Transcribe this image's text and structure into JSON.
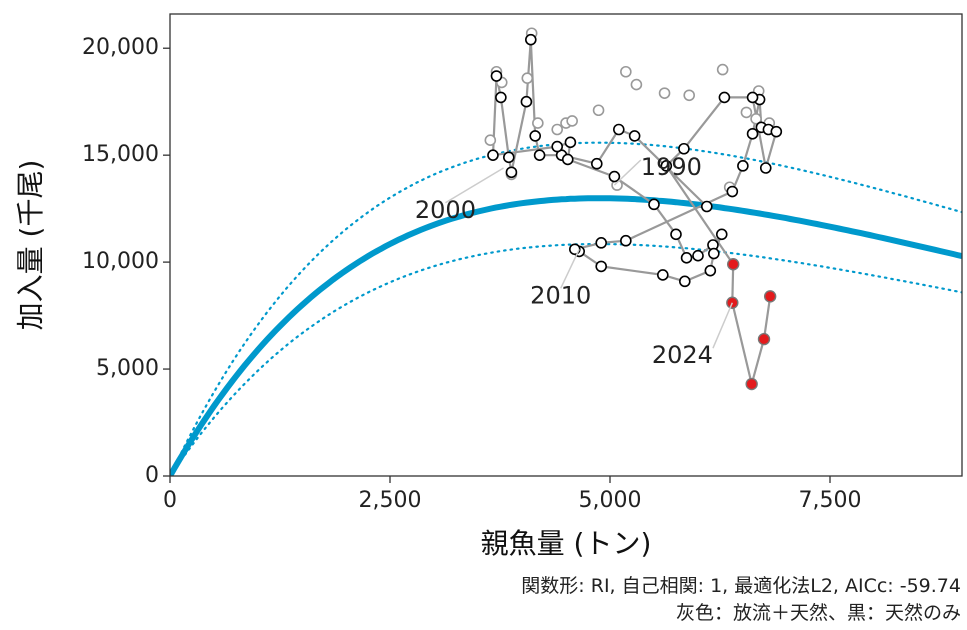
{
  "chart_data": {
    "type": "scatter",
    "xlabel": "親魚量 (トン)",
    "ylabel": "加入量 (千尾)",
    "xlim": [
      0,
      9000
    ],
    "ylim": [
      0,
      21600
    ],
    "xticks": [
      0,
      2500,
      5000,
      7500
    ],
    "xtick_labels": [
      "0",
      "2,500",
      "5,000",
      "7,500"
    ],
    "yticks": [
      0,
      5000,
      10000,
      15000,
      20000
    ],
    "ytick_labels": [
      "0",
      "5,000",
      "10,000",
      "15,000",
      "20,000"
    ],
    "grid": false,
    "colors": {
      "fit": "#0099cc",
      "path": "#999999",
      "natural_point_edge": "#000000",
      "total_point_edge": "#999999",
      "recent_point_fill": "#e31a1c"
    },
    "fit_curve": {
      "model": "RI",
      "a": 7.248,
      "b": 0.0002053,
      "upper_factor": 1.2,
      "lower_factor": 0.835
    },
    "series": [
      {
        "role": "natural-path",
        "points": [
          [
            6100,
            12600
          ],
          [
            5280,
            15900
          ],
          [
            5100,
            16200
          ],
          [
            4850,
            14600
          ],
          [
            4450,
            15000
          ],
          [
            4200,
            15000
          ],
          [
            4150,
            15900
          ],
          [
            4100,
            20400
          ],
          [
            4050,
            17500
          ],
          [
            3880,
            14200
          ],
          [
            3850,
            14900
          ],
          [
            3760,
            17700
          ],
          [
            3710,
            18700
          ],
          [
            3670,
            15000
          ],
          [
            4400,
            15400
          ],
          [
            4550,
            15600
          ],
          [
            4520,
            14800
          ],
          [
            5050,
            14000
          ],
          [
            5500,
            12700
          ],
          [
            5750,
            11300
          ],
          [
            5870,
            10200
          ],
          [
            6000,
            10300
          ],
          [
            6170,
            10800
          ],
          [
            6270,
            11300
          ],
          [
            6180,
            10400
          ],
          [
            6140,
            9600
          ],
          [
            5850,
            9100
          ],
          [
            5600,
            9400
          ],
          [
            4900,
            9800
          ],
          [
            4650,
            10500
          ],
          [
            4600,
            10600
          ],
          [
            4900,
            10900
          ],
          [
            5180,
            11000
          ],
          [
            6390,
            13300
          ],
          [
            6510,
            14500
          ],
          [
            6620,
            16000
          ],
          [
            6700,
            17600
          ],
          [
            6720,
            16300
          ],
          [
            6800,
            16200
          ],
          [
            6890,
            16100
          ],
          [
            6770,
            14400
          ],
          [
            6620,
            17700
          ],
          [
            6300,
            17700
          ],
          [
            5840,
            15300
          ],
          [
            5640,
            14500
          ]
        ]
      },
      {
        "role": "total-points",
        "points": [
          [
            3640,
            15700
          ],
          [
            3710,
            18900
          ],
          [
            3770,
            18400
          ],
          [
            3880,
            14100
          ],
          [
            4060,
            18600
          ],
          [
            4110,
            20700
          ],
          [
            4180,
            16500
          ],
          [
            4400,
            16200
          ],
          [
            4500,
            16500
          ],
          [
            4570,
            16600
          ],
          [
            4870,
            17100
          ],
          [
            5180,
            18900
          ],
          [
            5300,
            18300
          ],
          [
            5620,
            17900
          ],
          [
            5900,
            17800
          ],
          [
            6280,
            19000
          ],
          [
            6550,
            17000
          ],
          [
            6690,
            18000
          ],
          [
            6810,
            16500
          ],
          [
            6660,
            16700
          ],
          [
            6360,
            13500
          ],
          [
            5080,
            13600
          ]
        ]
      },
      {
        "role": "recent-points",
        "points": [
          [
            6400,
            9900
          ],
          [
            6390,
            8100
          ],
          [
            6610,
            4300
          ],
          [
            6750,
            6400
          ],
          [
            6820,
            8400
          ]
        ]
      }
    ],
    "annotations": [
      {
        "text": "1990",
        "x": 5050,
        "y": 13600,
        "lx": 5350,
        "ly": 14400,
        "anchor": "start"
      },
      {
        "text": "2000",
        "x": 3790,
        "y": 14400,
        "lx": 3130,
        "ly": 12400,
        "anchor": "middle"
      },
      {
        "text": "2010",
        "x": 4650,
        "y": 10600,
        "lx": 4440,
        "ly": 8400,
        "anchor": "middle"
      },
      {
        "text": "2024",
        "x": 6390,
        "y": 8100,
        "lx": 6170,
        "ly": 5600,
        "anchor": "end"
      }
    ]
  },
  "caption": {
    "line1": "関数形: RI, 自己相関: 1, 最適化法L2, AICc: -59.74",
    "line2": "灰色：放流＋天然、黒：天然のみ"
  }
}
